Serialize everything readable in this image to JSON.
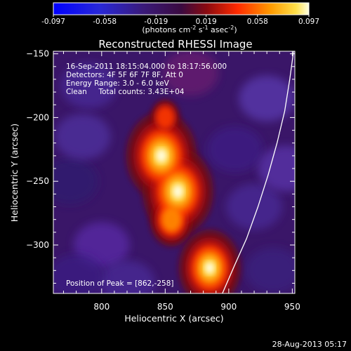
{
  "footer_timestamp": "28-Aug-2013 05:17",
  "colorbar": {
    "ticks": [
      "-0.097",
      "-0.058",
      "-0.019",
      "0.019",
      "0.058",
      "0.097"
    ],
    "unit_main": "(photons cm",
    "unit_sup1": "-2",
    "unit_mid1": " s",
    "unit_sup2": "-1",
    "unit_mid2": " asec",
    "unit_sup3": "-2",
    "unit_end": ")"
  },
  "chart_data": {
    "type": "heatmap",
    "title": "Reconstructed RHESSI Image",
    "xlabel": "Heliocentric X (arcsec)",
    "ylabel": "Heliocentric Y (arcsec)",
    "xlim": [
      762,
      952
    ],
    "ylim": [
      -338,
      -148
    ],
    "x_ticks": [
      800,
      850,
      900,
      950
    ],
    "y_ticks": [
      -150,
      -200,
      -250,
      -300
    ],
    "x_tick_labels": [
      "800",
      "850",
      "900",
      "950"
    ],
    "y_tick_labels": [
      "−150",
      "−200",
      "−250",
      "−300"
    ],
    "colorscale_range": [
      -0.097,
      0.097
    ],
    "annotations": [
      "16-Sep-2011 18:15:04.000 to 18:17:56.000",
      "Detectors: 4F 5F 6F 7F 8F, Att 0",
      "Energy Range: 3.0 - 6.0 keV",
      "Clean     Total counts: 3.43E+04"
    ],
    "peak_label": "Position of Peak = [862,-258]",
    "peak_position": [
      862,
      -258
    ],
    "sources": [
      {
        "x": 847,
        "y": -230,
        "intensity": 0.097
      },
      {
        "x": 860,
        "y": -258,
        "intensity": 0.097
      },
      {
        "x": 885,
        "y": -318,
        "intensity": 0.085
      },
      {
        "x": 855,
        "y": -280,
        "intensity": 0.06
      },
      {
        "x": 850,
        "y": -200,
        "intensity": 0.04
      }
    ],
    "limb_curve": [
      [
        951,
        -148
      ],
      [
        948,
        -170
      ],
      [
        944,
        -195
      ],
      [
        938,
        -220
      ],
      [
        931,
        -245
      ],
      [
        923,
        -270
      ],
      [
        914,
        -295
      ],
      [
        905,
        -315
      ],
      [
        895,
        -338
      ]
    ]
  }
}
